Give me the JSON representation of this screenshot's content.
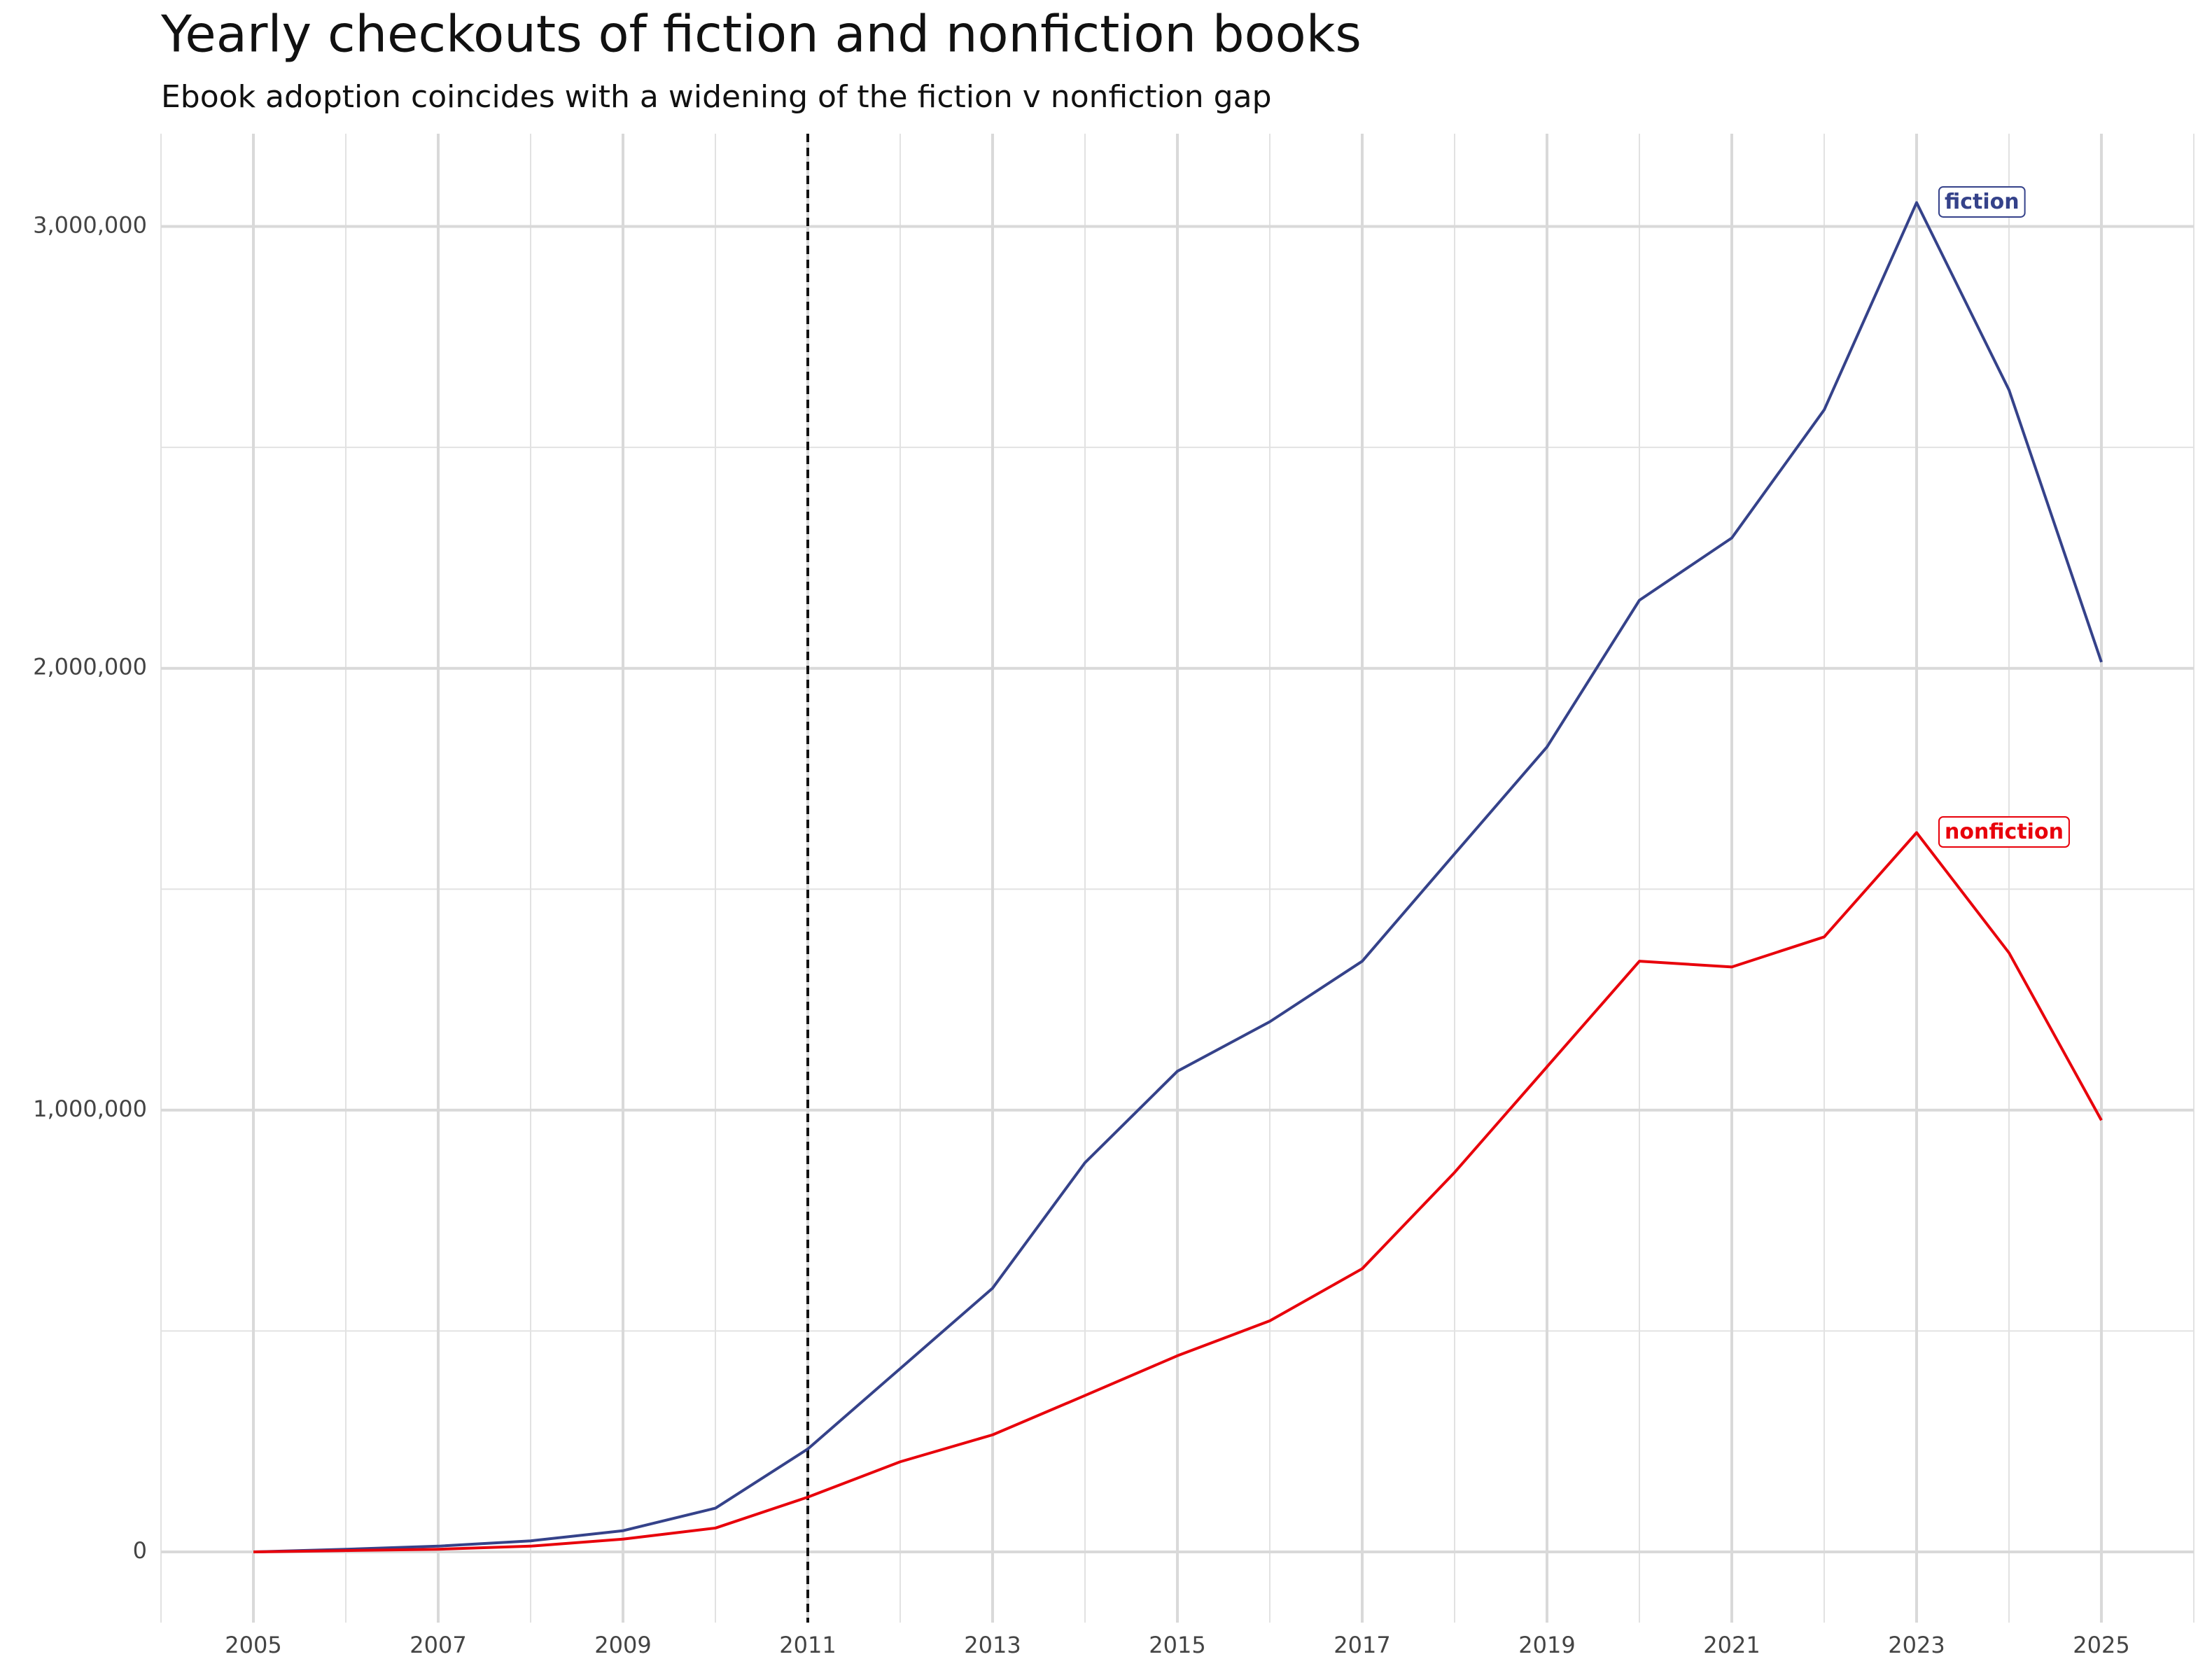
{
  "chart_data": {
    "type": "line",
    "title": "Yearly checkouts of fiction and nonfiction books",
    "subtitle": "Ebook adoption coincides with a widening of the fiction v nonfiction gap",
    "x": [
      2005,
      2006,
      2007,
      2008,
      2009,
      2010,
      2011,
      2012,
      2013,
      2014,
      2015,
      2016,
      2017,
      2018,
      2019,
      2020,
      2021,
      2022,
      2023,
      2024,
      2025
    ],
    "series": [
      {
        "name": "fiction",
        "color": "#35428a",
        "values": [
          0,
          6000,
          13000,
          25000,
          48000,
          99000,
          233000,
          415000,
          597000,
          881000,
          1088000,
          1200000,
          1337000,
          1580000,
          1822000,
          2154000,
          2295000,
          2585000,
          3054000,
          2630000,
          2014000
        ]
      },
      {
        "name": "nonfiction",
        "color": "#e8000b",
        "values": [
          0,
          3000,
          6000,
          13000,
          29000,
          54000,
          124000,
          204000,
          265000,
          354000,
          444000,
          523000,
          641000,
          859000,
          1098000,
          1337000,
          1324000,
          1392000,
          1628000,
          1356000,
          977000
        ]
      }
    ],
    "xlim": [
      2004,
      2026
    ],
    "xticks": [
      2005,
      2007,
      2009,
      2011,
      2013,
      2015,
      2017,
      2019,
      2021,
      2023,
      2025
    ],
    "xminor": [
      2004,
      2006,
      2008,
      2010,
      2012,
      2014,
      2016,
      2018,
      2020,
      2022,
      2024,
      2026
    ],
    "ylim": [
      -160000,
      3210000
    ],
    "yticks": [
      {
        "value": 0,
        "label": "0"
      },
      {
        "value": 1000000,
        "label": "1,000,000"
      },
      {
        "value": 2000000,
        "label": "2,000,000"
      },
      {
        "value": 3000000,
        "label": "3,000,000"
      }
    ],
    "yminor": [
      500000,
      1500000,
      2500000
    ],
    "vline": 2011,
    "grid": true
  }
}
